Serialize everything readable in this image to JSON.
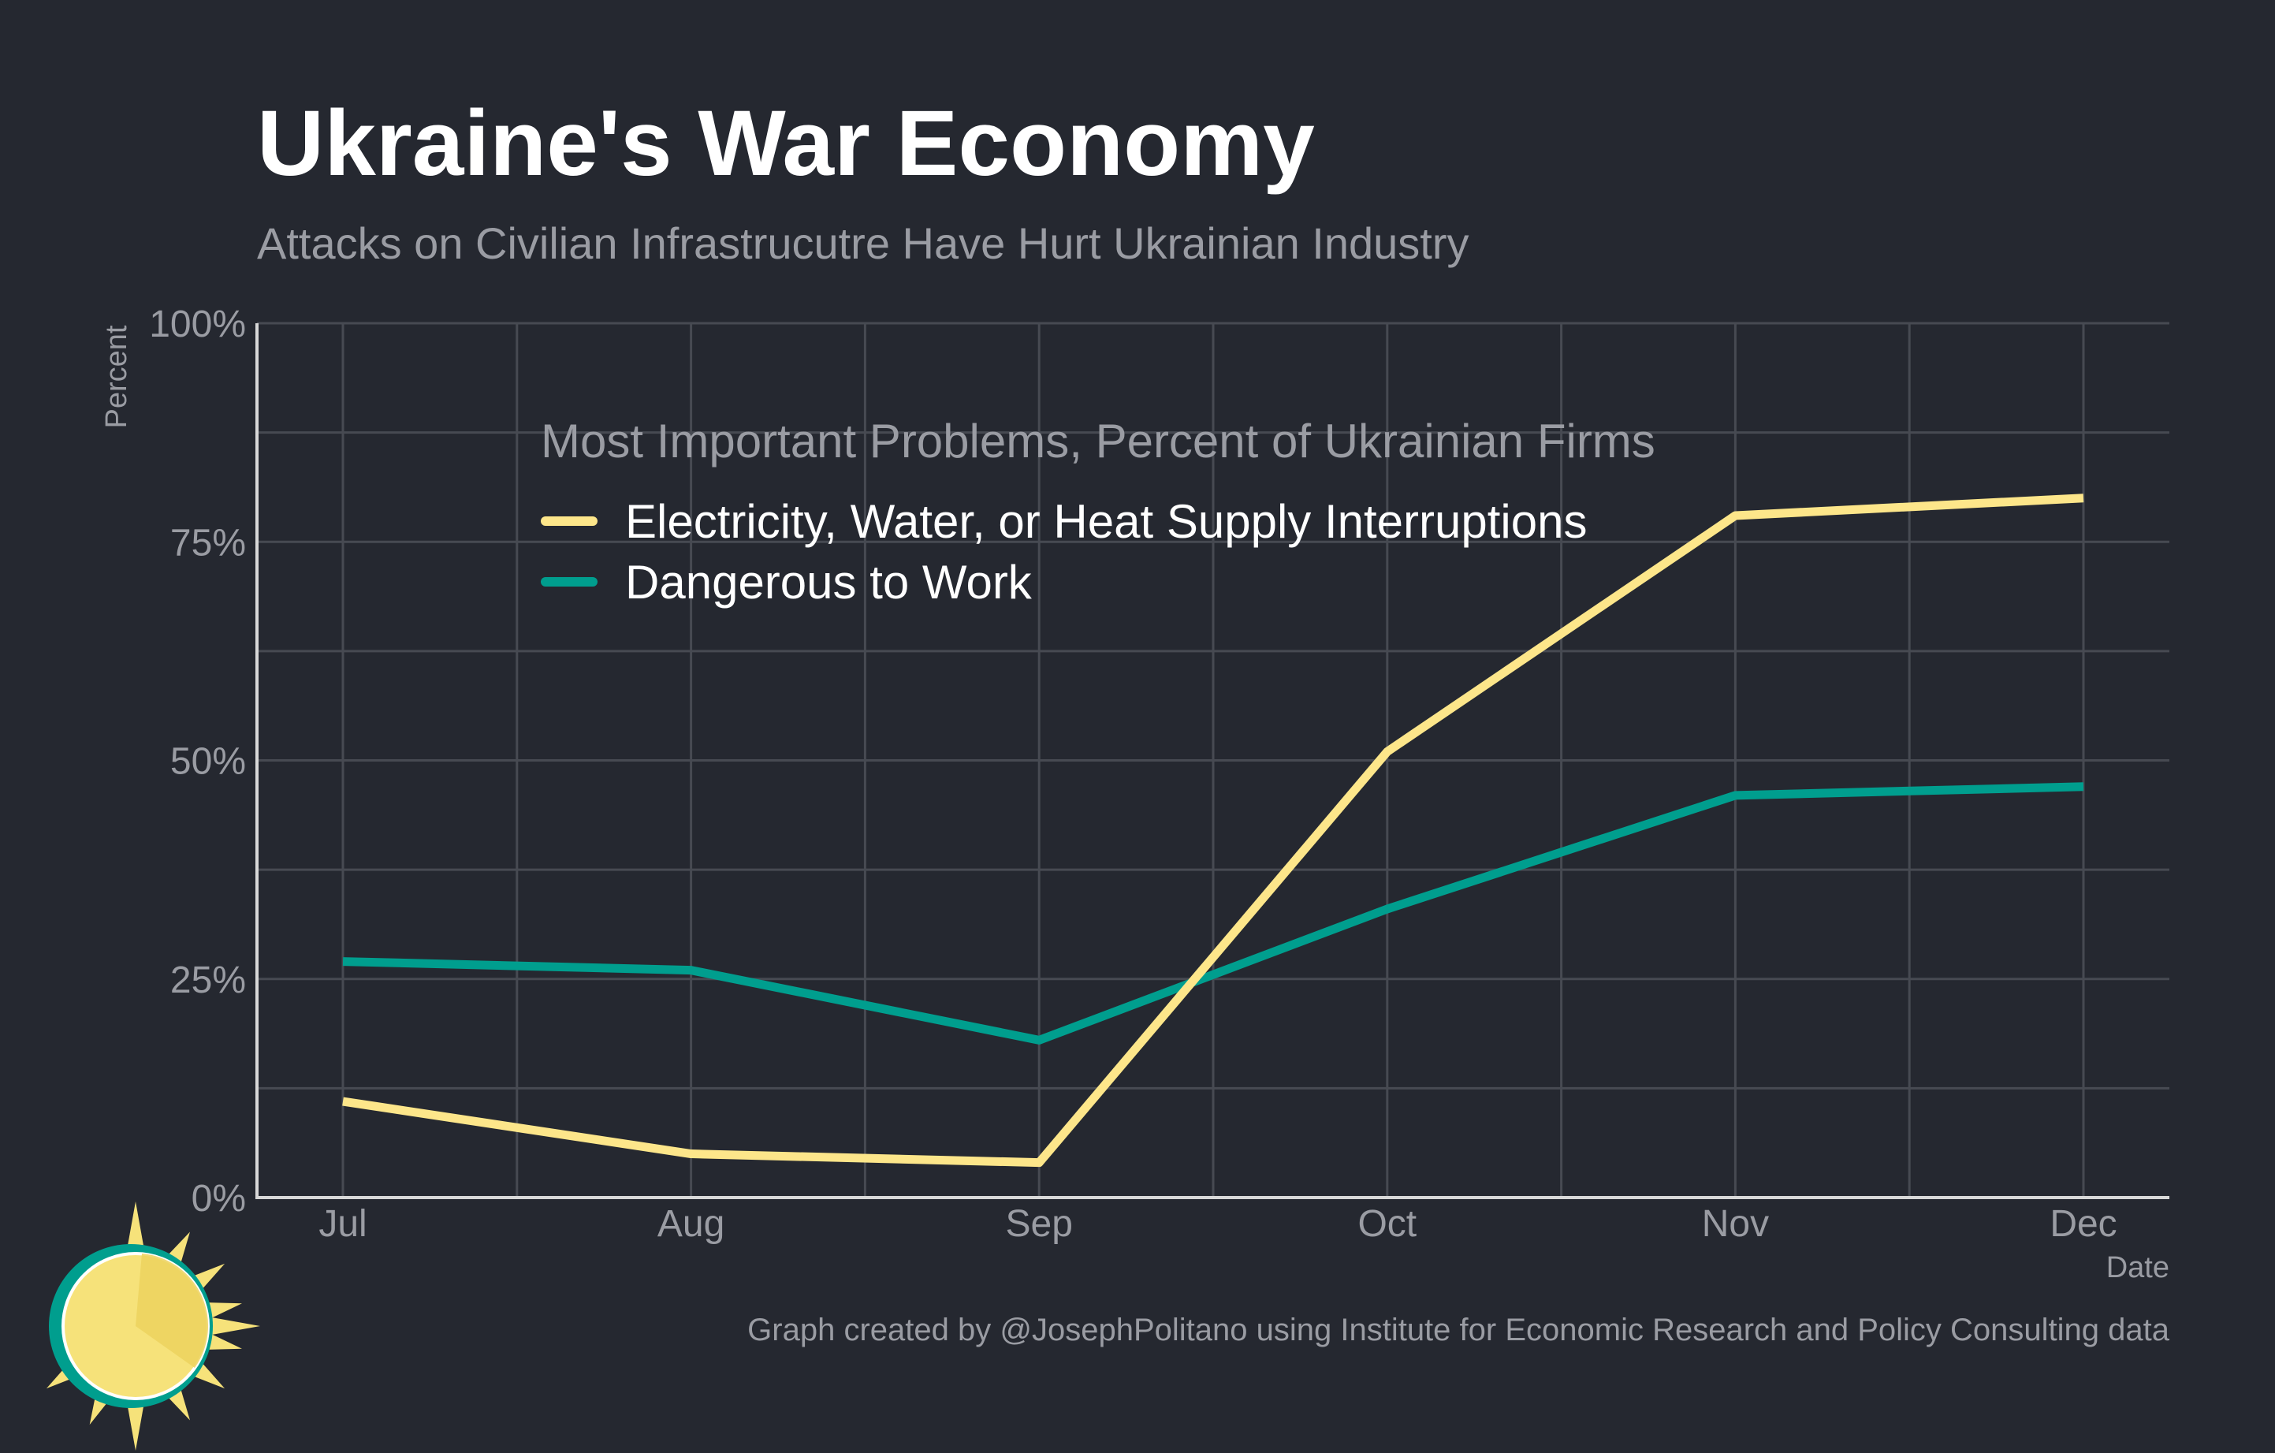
{
  "chart_data": {
    "type": "line",
    "title": "Ukraine's War Economy",
    "subtitle": "Attacks on Civilian Infrastrucutre Have Hurt Ukrainian Industry",
    "xlabel": "Date",
    "ylabel": "Percent",
    "categories": [
      "Jul",
      "Aug",
      "Sep",
      "Oct",
      "Nov",
      "Dec"
    ],
    "ylim": [
      0,
      100
    ],
    "yticks": [
      "0%",
      "25%",
      "50%",
      "75%",
      "100%"
    ],
    "grid": true,
    "legend_title": "Most Important Problems, Percent of Ukrainian Firms",
    "legend_position": "upper-left inside plot",
    "series": [
      {
        "name": "Electricity, Water, or Heat Supply Interruptions",
        "color": "#fde68a",
        "values": [
          11,
          5,
          4,
          51,
          78,
          80
        ]
      },
      {
        "name": "Dangerous to Work",
        "color": "#009e8e",
        "values": [
          27,
          26,
          18,
          33,
          46,
          47
        ]
      }
    ],
    "caption": "Graph created by @JosephPolitano using Institute for Economic Research and Policy Consulting data"
  },
  "logo": {
    "icon": "sun-logo-icon",
    "colors": [
      "#f6e27a",
      "#009e8e"
    ]
  }
}
